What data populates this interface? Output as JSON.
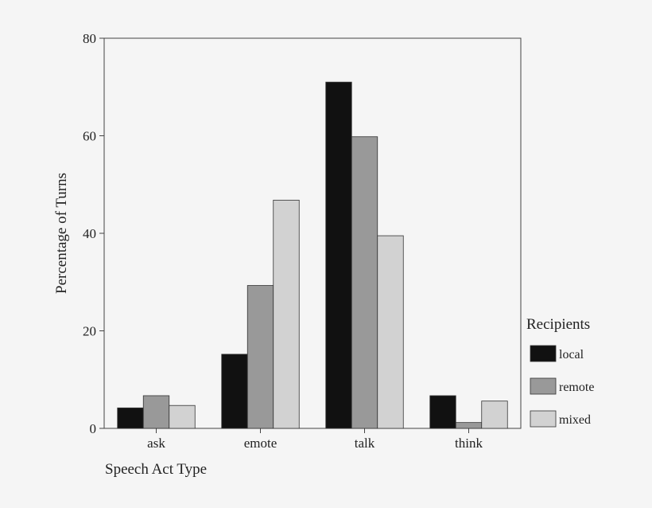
{
  "chart_data": {
    "type": "bar",
    "title": "",
    "xlabel": "Speech Act Type",
    "ylabel": "Percentage of Turns",
    "categories": [
      "ask",
      "emote",
      "talk",
      "think"
    ],
    "ylim": [
      0,
      80
    ],
    "yticks": [
      0,
      20,
      40,
      60,
      80
    ],
    "grid": false,
    "legend": {
      "title": "Recipients",
      "placement": "right"
    },
    "series": [
      {
        "name": "local",
        "values": [
          4.2,
          15.2,
          71.0,
          6.7
        ],
        "color": "#111111"
      },
      {
        "name": "remote",
        "values": [
          6.7,
          29.3,
          59.8,
          1.2
        ],
        "color": "#999999"
      },
      {
        "name": "mixed",
        "values": [
          4.7,
          46.8,
          39.5,
          5.6
        ],
        "color": "#d2d2d2"
      }
    ]
  }
}
